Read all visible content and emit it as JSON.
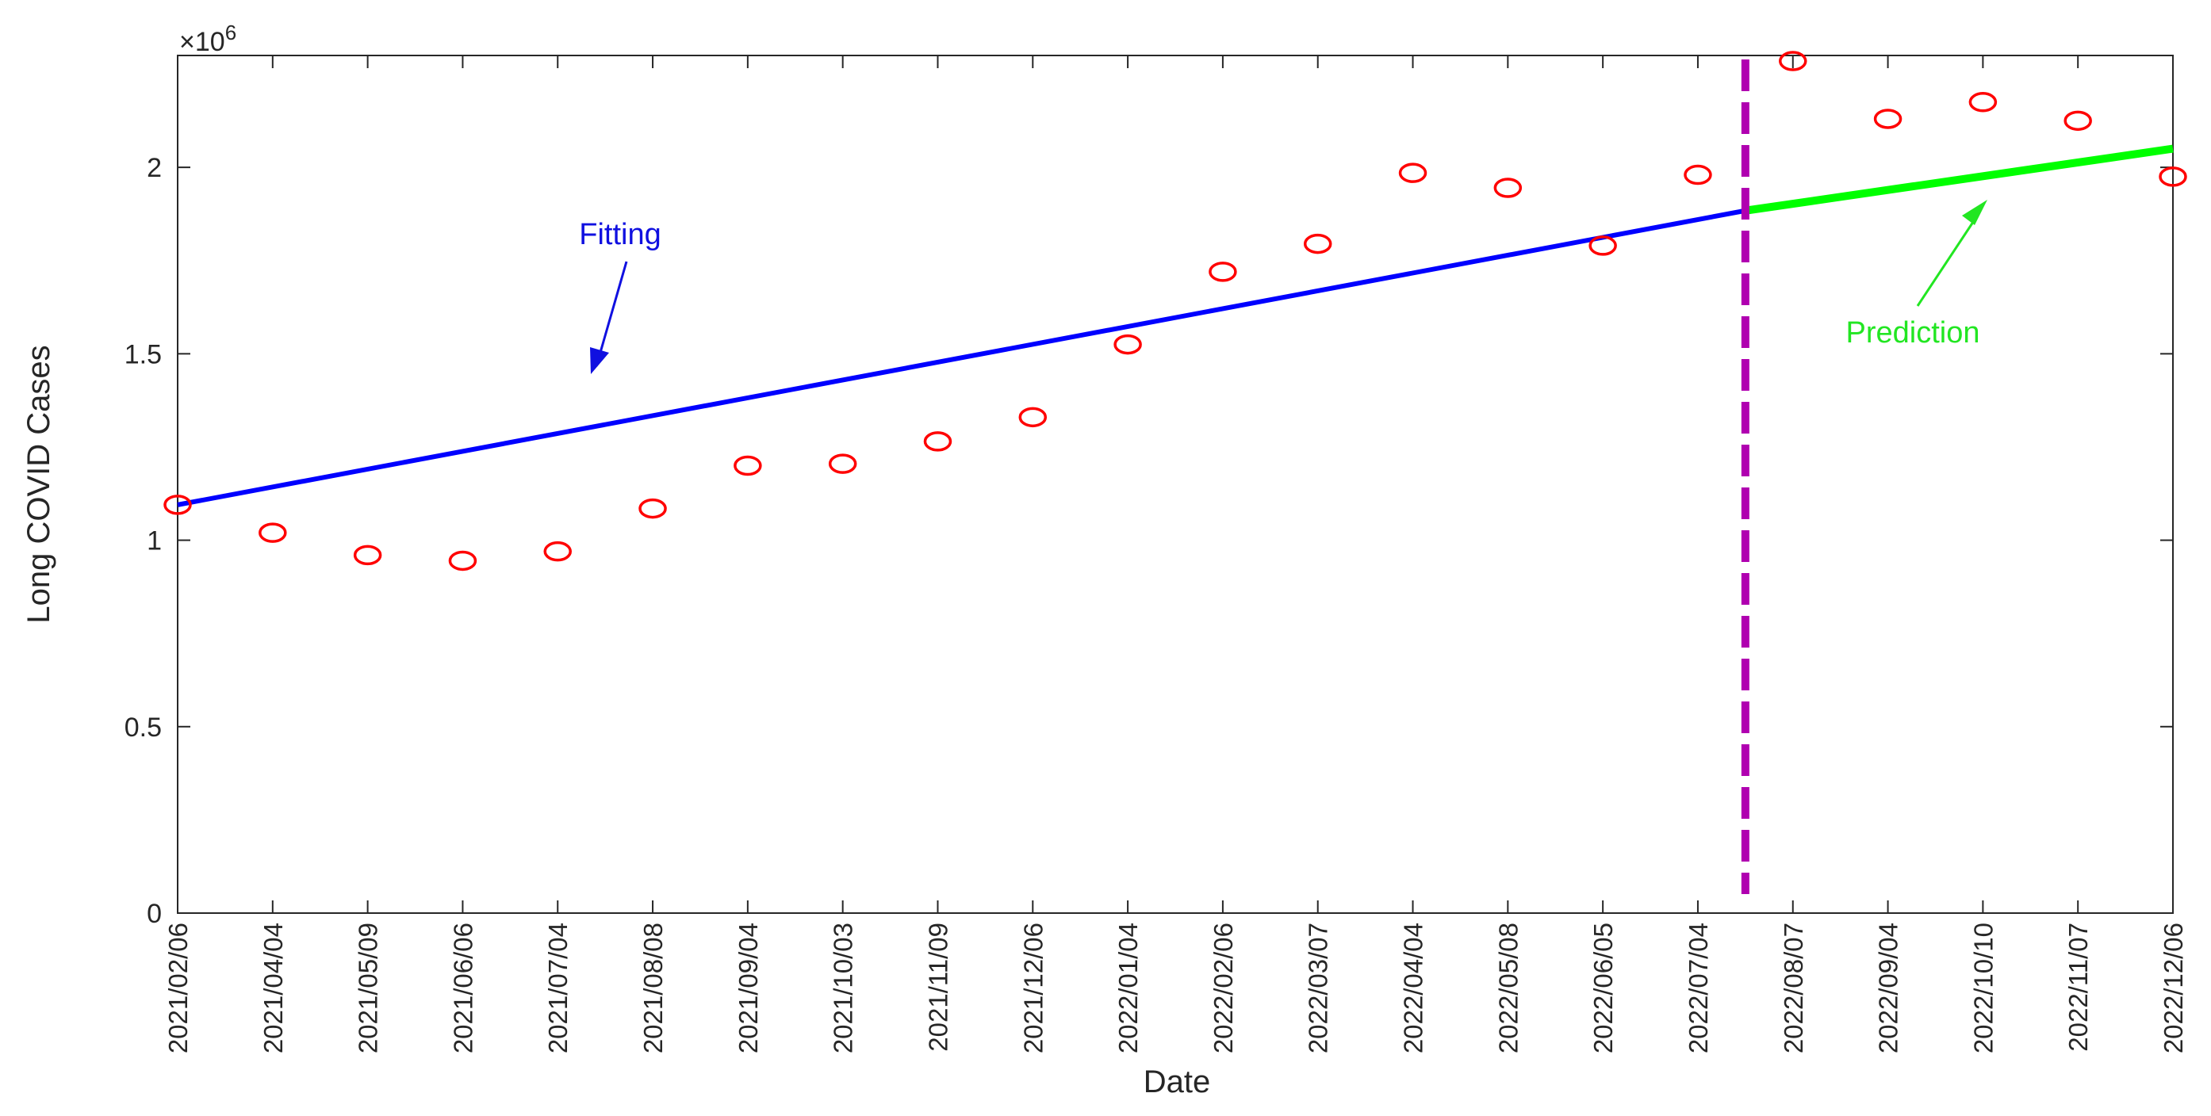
{
  "chart_data": {
    "type": "scatter",
    "ylabel": "Long COVID Cases",
    "xlabel": "Date",
    "y_exponent_label": "×10",
    "y_exponent_power": "6",
    "ylim": [
      0,
      2.3
    ],
    "yticks": [
      0,
      0.5,
      1,
      1.5,
      2
    ],
    "ytick_labels": [
      "0",
      "0.5",
      "1",
      "1.5",
      "2"
    ],
    "categories": [
      "2021/02/06",
      "2021/04/04",
      "2021/05/09",
      "2021/06/06",
      "2021/07/04",
      "2021/08/08",
      "2021/09/04",
      "2021/10/03",
      "2021/11/09",
      "2021/12/06",
      "2022/01/04",
      "2022/02/06",
      "2022/03/07",
      "2022/04/04",
      "2022/05/08",
      "2022/06/05",
      "2022/07/04",
      "2022/08/07",
      "2022/09/04",
      "2022/10/10",
      "2022/11/07",
      "2022/12/06"
    ],
    "observed_values": [
      1.095,
      1.02,
      0.96,
      0.945,
      0.97,
      1.085,
      1.2,
      1.205,
      1.265,
      1.33,
      1.525,
      1.72,
      1.795,
      1.985,
      1.945,
      1.79,
      1.98,
      2.285,
      2.13,
      2.175,
      2.125,
      1.975
    ],
    "fit_line": {
      "x_start": "2021/02/06",
      "y_start": 1.095,
      "x_end": "2022/07/04",
      "y_end": 1.86
    },
    "prediction_line": {
      "x_end": "2022/12/06",
      "y_end": 2.05
    },
    "vline_position": 16.5,
    "annotations": [
      {
        "text": "Fitting",
        "color": "#1010e0"
      },
      {
        "text": "Prediction",
        "color": "#22e622"
      }
    ],
    "colors": {
      "points": "#ff0000",
      "fit": "#0000ff",
      "prediction": "#00ff00",
      "split_line": "#b000b0",
      "fitting_label": "#1010e0",
      "prediction_label": "#22e622"
    },
    "grid": false
  }
}
